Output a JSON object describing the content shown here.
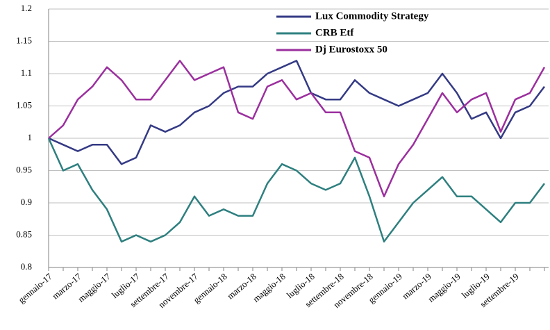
{
  "chart_data": {
    "type": "line",
    "categories": [
      "gennaio-17",
      null,
      "marzo-17",
      null,
      "maggio-17",
      null,
      "luglio-17",
      null,
      "settembre-17",
      null,
      "novembre-17",
      null,
      "gennaio-18",
      null,
      "marzo-18",
      null,
      "maggio-18",
      null,
      "luglio-18",
      null,
      "settembre-18",
      null,
      "novembre-18",
      null,
      "gennaio-19",
      null,
      "marzo-19",
      null,
      "maggio-19",
      null,
      "luglio-19",
      null,
      "settembre-19",
      null,
      null
    ],
    "series": [
      {
        "name": "Lux Commodity Strategy",
        "color": "#343a84",
        "values": [
          1.0,
          0.99,
          0.98,
          0.99,
          0.99,
          0.96,
          0.97,
          1.02,
          1.01,
          1.02,
          1.04,
          1.05,
          1.07,
          1.08,
          1.08,
          1.1,
          1.11,
          1.12,
          1.07,
          1.06,
          1.06,
          1.09,
          1.07,
          1.06,
          1.05,
          1.06,
          1.07,
          1.1,
          1.07,
          1.03,
          1.04,
          1.0,
          1.04,
          1.05,
          1.08
        ]
      },
      {
        "name": "CRB Etf",
        "color": "#2e7f7f",
        "values": [
          1.0,
          0.95,
          0.96,
          0.92,
          0.89,
          0.84,
          0.85,
          0.84,
          0.85,
          0.87,
          0.91,
          0.88,
          0.89,
          0.88,
          0.88,
          0.93,
          0.96,
          0.95,
          0.93,
          0.92,
          0.93,
          0.97,
          0.91,
          0.84,
          0.87,
          0.9,
          0.92,
          0.94,
          0.91,
          0.91,
          0.89,
          0.87,
          0.9,
          0.9,
          0.93
        ]
      },
      {
        "name": "Dj Eurostoxx 50",
        "color": "#9b2f9e",
        "values": [
          1.0,
          1.02,
          1.06,
          1.08,
          1.11,
          1.09,
          1.06,
          1.06,
          1.09,
          1.12,
          1.09,
          1.1,
          1.11,
          1.04,
          1.03,
          1.08,
          1.09,
          1.06,
          1.07,
          1.04,
          1.04,
          0.98,
          0.97,
          0.91,
          0.96,
          0.99,
          1.03,
          1.07,
          1.04,
          1.06,
          1.07,
          1.01,
          1.06,
          1.07,
          1.11
        ]
      }
    ],
    "ylim": [
      0.8,
      1.2
    ],
    "yticks": [
      0.8,
      0.85,
      0.9,
      0.95,
      1,
      1.05,
      1.1,
      1.15,
      1.2
    ],
    "grid": true,
    "legend": "top-right"
  }
}
